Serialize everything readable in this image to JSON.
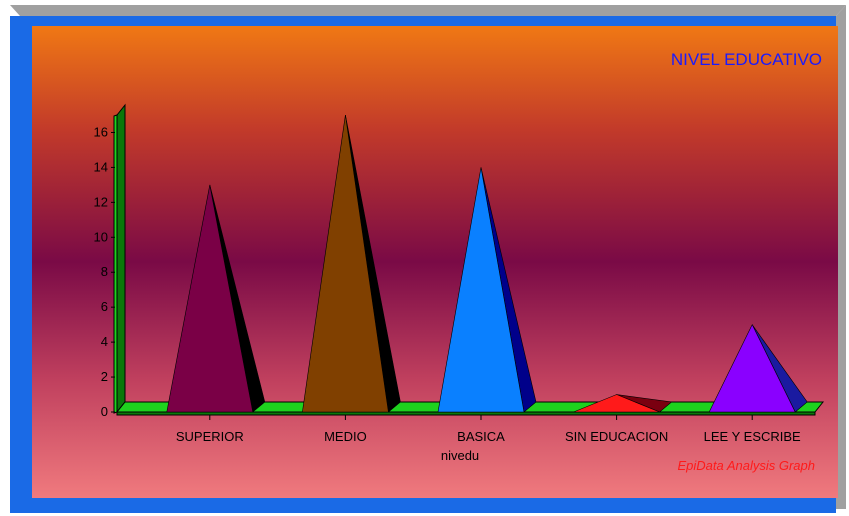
{
  "chart_data": {
    "type": "bar",
    "title": "NIVEL EDUCATIVO",
    "xlabel": "nivedu",
    "ylabel": "",
    "ylim": [
      0,
      17
    ],
    "yticks": [
      0,
      2,
      4,
      6,
      8,
      10,
      12,
      14,
      16
    ],
    "categories": [
      "SUPERIOR",
      "MEDIO",
      "BASICA",
      "SIN EDUCACION",
      "LEE Y  ESCRIBE"
    ],
    "values": [
      13,
      17,
      14,
      1,
      5
    ],
    "bar_shape": "pyramid",
    "colors": [
      "#7a0046",
      "#804000",
      "#0a80ff",
      "#ff1a1a",
      "#8a00ff"
    ],
    "side_colors": [
      "#000000",
      "#000000",
      "#00008a",
      "#7a0010",
      "#1a1aa0"
    ],
    "grid": false,
    "legend": "none"
  },
  "watermark": "EpiData Analysis Graph",
  "colors": {
    "frame_blue": "#1a6ae6",
    "frame_gray": "#a0a0a0",
    "bg_top": "#f07814",
    "bg_mid": "#7a0a46",
    "bg_bottom": "#f07a7e",
    "floor_green": "#1ed21e",
    "wall_green": "#0a780a"
  }
}
